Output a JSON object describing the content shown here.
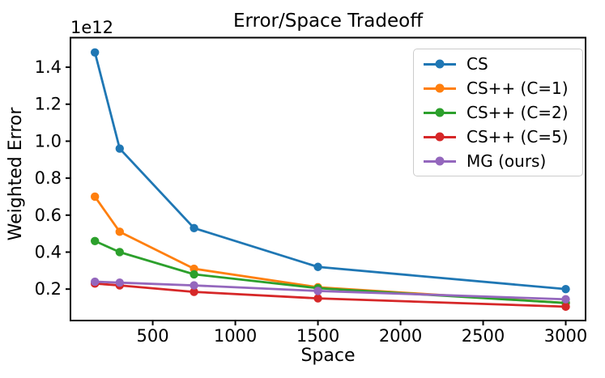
{
  "figure": {
    "title": "Error/Space Tradeoff",
    "y_axis_offset_text": "1e12"
  },
  "chart_data": {
    "type": "line",
    "title": "Error/Space Tradeoff",
    "xlabel": "Space",
    "ylabel": "Weighted Error",
    "y_offset_text": "1e12",
    "y_unit_multiplier": 1000000000000.0,
    "x": [
      150,
      300,
      750,
      1500,
      3000
    ],
    "series": [
      {
        "name": "CS",
        "color": "#1f77b4",
        "values_1e12": [
          1.48,
          0.96,
          0.53,
          0.32,
          0.2
        ]
      },
      {
        "name": "CS++ (C=1)",
        "color": "#ff7f0e",
        "values_1e12": [
          0.7,
          0.51,
          0.31,
          0.21,
          0.125
        ]
      },
      {
        "name": "CS++ (C=2)",
        "color": "#2ca02c",
        "values_1e12": [
          0.46,
          0.4,
          0.28,
          0.205,
          0.125
        ]
      },
      {
        "name": "CS++ (C=5)",
        "color": "#d62728",
        "values_1e12": [
          0.23,
          0.22,
          0.185,
          0.15,
          0.105
        ]
      },
      {
        "name": "MG (ours)",
        "color": "#9467bd",
        "values_1e12": [
          0.24,
          0.235,
          0.22,
          0.19,
          0.145
        ]
      }
    ],
    "xticks": [
      500,
      1000,
      1500,
      2000,
      2500,
      3000
    ],
    "yticks": [
      0.2,
      0.4,
      0.6,
      0.8,
      1.0,
      1.2,
      1.4
    ],
    "xlim": [
      2,
      3120
    ],
    "ylim": [
      0.03,
      1.56
    ],
    "grid": false,
    "legend_position": "upper right",
    "marker": "circle",
    "line_width": 2.8,
    "marker_radius": 5.2
  }
}
